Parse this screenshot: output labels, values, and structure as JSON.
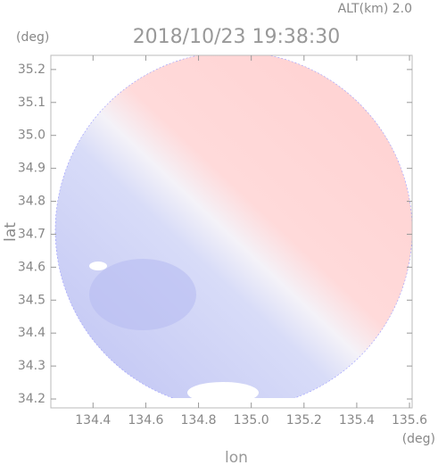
{
  "chart_data": {
    "type": "radar-map",
    "title": "2018/10/23 19:38:30",
    "subtitle": "ALT(km) 2.0",
    "y_unit": "(deg)",
    "x_unit": "(deg)",
    "xlabel": "lon",
    "ylabel": "lat",
    "xlim": [
      134.24,
      135.61
    ],
    "ylim": [
      34.173,
      35.243
    ],
    "xticks": [
      134.4,
      134.6,
      134.8,
      {
        "value": 135.0,
        "label": "135.0"
      },
      135.2,
      135.4,
      135.6
    ],
    "yticks": [
      34.2,
      34.3,
      34.4,
      34.5,
      34.6,
      34.7,
      34.8,
      34.9,
      {
        "value": 35.0,
        "label": "35.0"
      },
      35.1,
      35.2
    ]
  }
}
